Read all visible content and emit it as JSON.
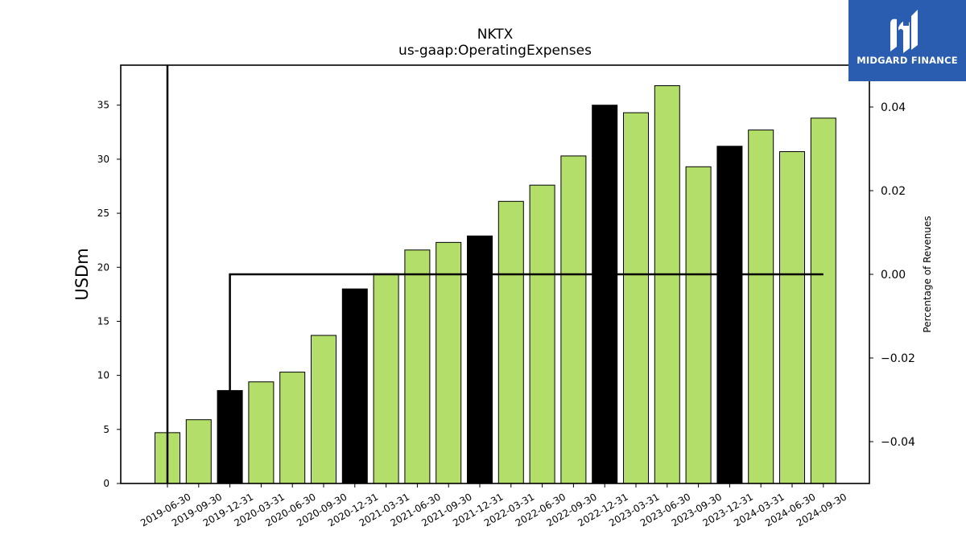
{
  "brand": {
    "name": "MIDGARD FINANCE",
    "bg_color": "#2a5db0"
  },
  "chart_data": {
    "type": "bar",
    "title": "NKTX",
    "subtitle": "us-gaap:OperatingExpenses",
    "ylabel": "USDm",
    "ylabel_right": "Percentage of Revenues",
    "categories": [
      "2019-06-30",
      "2019-09-30",
      "2019-12-31",
      "2020-03-31",
      "2020-06-30",
      "2020-09-30",
      "2020-12-31",
      "2021-03-31",
      "2021-06-30",
      "2021-09-30",
      "2021-12-31",
      "2022-03-31",
      "2022-06-30",
      "2022-09-30",
      "2022-12-31",
      "2023-03-31",
      "2023-06-30",
      "2023-09-30",
      "2023-12-31",
      "2024-03-31",
      "2024-06-30",
      "2024-09-30"
    ],
    "values": [
      4.7,
      5.9,
      8.6,
      9.4,
      10.3,
      13.7,
      18.0,
      19.4,
      21.6,
      22.3,
      22.9,
      26.1,
      27.6,
      30.3,
      35.0,
      34.3,
      36.8,
      29.3,
      31.2,
      32.7,
      30.7,
      33.8
    ],
    "bar_colors": [
      "#b3de69",
      "#b3de69",
      "#000000",
      "#b3de69",
      "#b3de69",
      "#b3de69",
      "#000000",
      "#b3de69",
      "#b3de69",
      "#b3de69",
      "#000000",
      "#b3de69",
      "#b3de69",
      "#b3de69",
      "#000000",
      "#b3de69",
      "#b3de69",
      "#b3de69",
      "#000000",
      "#b3de69",
      "#b3de69",
      "#b3de69"
    ],
    "ylim": [
      0,
      38.7
    ],
    "yticks": [
      0,
      5,
      10,
      15,
      20,
      25,
      30,
      35
    ],
    "y2lim": [
      -0.05,
      0.05
    ],
    "y2ticks": [
      -0.04,
      -0.02,
      0.0,
      0.02,
      0.04
    ],
    "y2tick_labels": [
      "−0.04",
      "−0.02",
      "0.00",
      "0.02",
      "0.04"
    ],
    "line_series": {
      "axis": "right",
      "x": [
        "2019-12-31",
        "2020-03-31",
        "2020-06-30",
        "2020-09-30",
        "2020-12-31",
        "2021-03-31",
        "2021-06-30",
        "2021-09-30",
        "2021-12-31",
        "2022-03-31",
        "2022-06-30",
        "2022-09-30",
        "2022-12-31",
        "2023-03-31",
        "2023-06-30",
        "2023-09-30",
        "2023-12-31",
        "2024-03-31",
        "2024-06-30",
        "2024-09-30"
      ],
      "values": [
        0,
        0,
        0,
        0,
        0,
        0,
        0,
        0,
        0,
        0,
        0,
        0,
        0,
        0,
        0,
        0,
        0,
        0,
        0,
        0
      ],
      "color": "#000000"
    },
    "grid": false
  }
}
